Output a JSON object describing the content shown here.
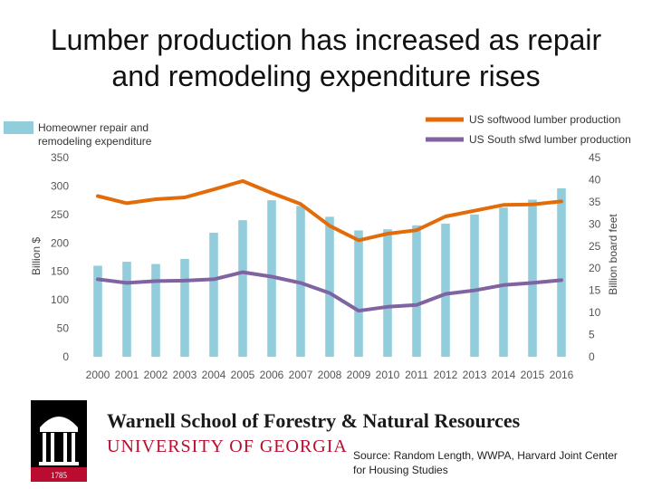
{
  "title_line1": "Lumber production has increased as repair",
  "title_line2": "and remodeling expenditure rises",
  "source": "Source: Random Length, WWPA, Harvard Joint Center for Housing Studies",
  "branding": {
    "school": "Warnell School of Forestry & Natural Resources",
    "university": "UNIVERSITY OF GEORGIA",
    "seal_year": "1785",
    "brand_red": "#ba0c2f"
  },
  "chart_data": {
    "type": "bar+line",
    "categories": [
      "2000",
      "2001",
      "2002",
      "2003",
      "2004",
      "2005",
      "2006",
      "2007",
      "2008",
      "2009",
      "2010",
      "2011",
      "2012",
      "2013",
      "2014",
      "2015",
      "2016"
    ],
    "bar_series": {
      "name": "Homeowner repair and remodeling expenditure",
      "color": "#92cddc",
      "axis": "left",
      "values": [
        160,
        167,
        163,
        172,
        218,
        240,
        275,
        265,
        246,
        222,
        224,
        231,
        234,
        250,
        262,
        276,
        296
      ]
    },
    "line_series": [
      {
        "name": "US softwood lumber production",
        "color": "#e36c0a",
        "axis": "right",
        "values": [
          36.3,
          34.7,
          35.6,
          36.0,
          37.8,
          39.7,
          37.0,
          34.5,
          29.6,
          26.3,
          27.8,
          28.6,
          31.7,
          33.0,
          34.3,
          34.4,
          35.1
        ]
      },
      {
        "name": "US South sfwd lumber production",
        "color": "#8064a2",
        "axis": "right",
        "values": [
          17.5,
          16.7,
          17.1,
          17.2,
          17.5,
          19.1,
          18.1,
          16.7,
          14.4,
          10.4,
          11.3,
          11.7,
          14.2,
          15.0,
          16.2,
          16.7,
          17.3
        ]
      }
    ],
    "y_left": {
      "label": "Billion $",
      "ticks": [
        0,
        50,
        100,
        150,
        200,
        250,
        300,
        350
      ],
      "ylim": [
        0,
        350
      ]
    },
    "y_right": {
      "label": "Billion board feet",
      "ticks": [
        0,
        5,
        10,
        15,
        20,
        25,
        30,
        35,
        40,
        45
      ],
      "ylim": [
        0,
        45
      ]
    },
    "grid": false,
    "legend_left": [
      "Homeowner repair and",
      "remodeling expenditure"
    ],
    "legend_right": [
      "US softwood lumber production",
      "US South sfwd lumber production"
    ]
  }
}
